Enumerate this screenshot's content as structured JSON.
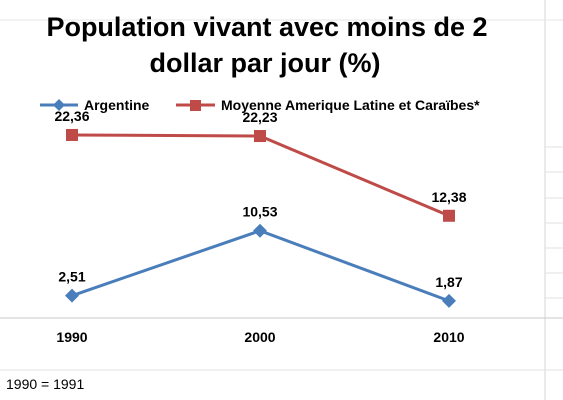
{
  "chart_data": {
    "type": "line",
    "title_lines": [
      "Population vivant avec moins de 2",
      "dollar par jour (%)"
    ],
    "categories": [
      "1990",
      "2000",
      "2010"
    ],
    "series": [
      {
        "name": "Argentine",
        "values": [
          2.51,
          10.53,
          1.87
        ],
        "labels": [
          "2,51",
          "10,53",
          "1,87"
        ],
        "color": "#4a7ebb",
        "marker": "diamond"
      },
      {
        "name": "Moyenne Amerique Latine et Caraïbes*",
        "values": [
          22.36,
          22.23,
          12.38
        ],
        "labels": [
          "22,36",
          "22,23",
          "12,38"
        ],
        "color": "#be4b48",
        "marker": "square"
      }
    ],
    "legend_position": "top",
    "grid": false
  },
  "footnote": "1990 = 1991"
}
